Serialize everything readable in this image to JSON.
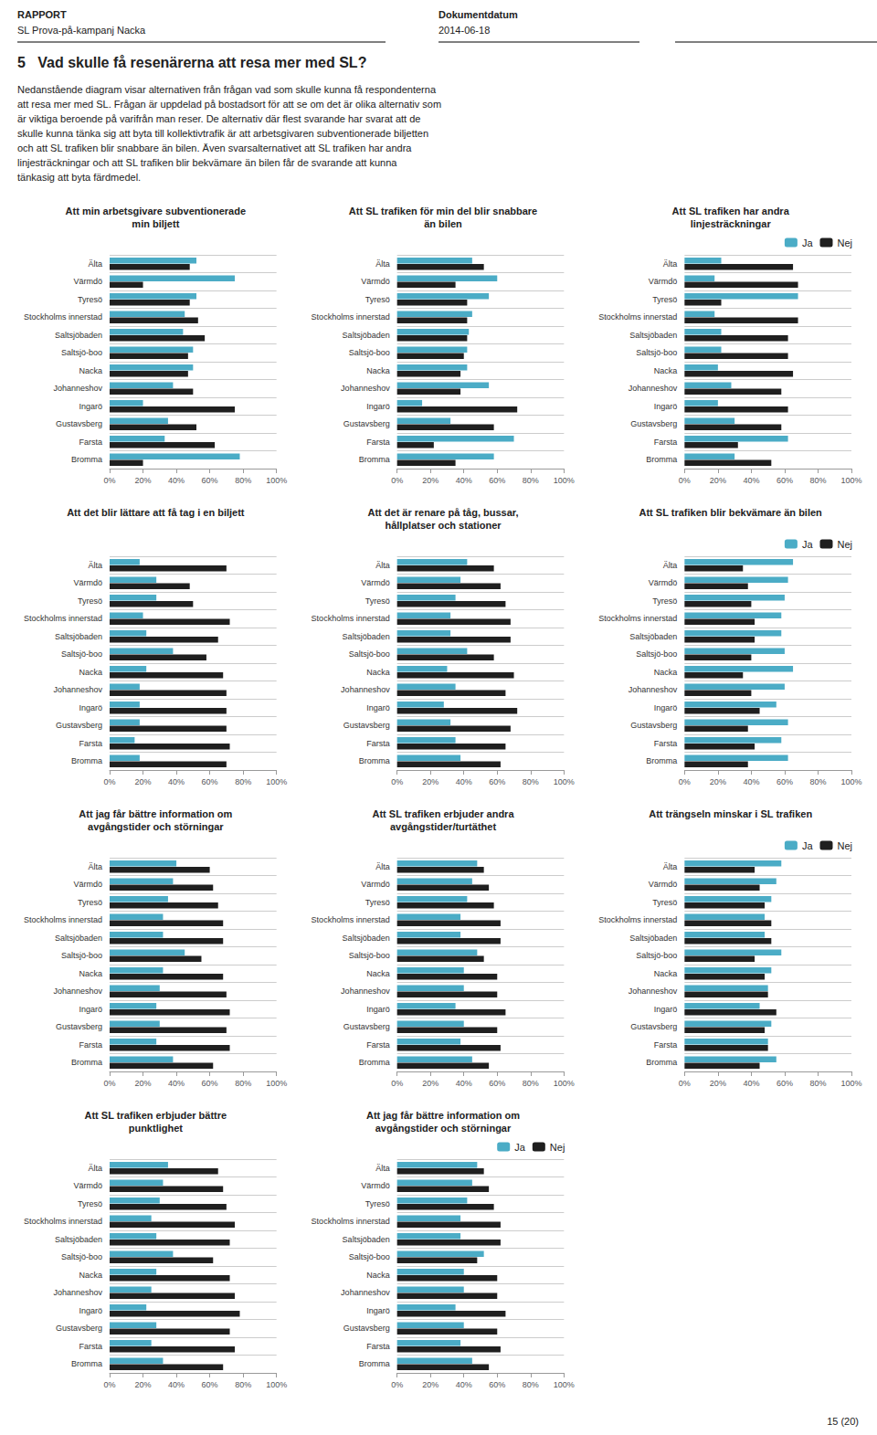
{
  "title": "5   Vad skulle få resenärerna att resa mer med SL?",
  "annotations": [
    "RAPPORT",
    "SL Prova-på-kampanj Nacka",
    "Dokumentdatum",
    "2014-06-18",
    "Nedanstående diagram visar alternativen från frågan vad som skulle kunna få respondenterna",
    "att resa mer med SL. Frågan är uppdelad på bostadsort för att se om det är olika alternativ som",
    "är viktiga beroende på varifrån man reser. De alternativ där flest svarande har svarat att de",
    "skulle kunna tänka sig att byta till kollektivtrafik är att arbetsgivaren subventionerade biljetten",
    "och att SL trafiken blir snabbare än bilen. Även svarsalternativet att SL trafiken har andra",
    "linjesträckningar och att SL trafiken blir bekvämare än bilen får de svarande att kunna",
    "tänkasig att byta färdmedel.",
    "15 (20)"
  ],
  "chart_data": [
    {
      "type": "bar",
      "orientation": "horizontal",
      "grid": true,
      "title": "Att min arbetsgivare subventionerade\nmin biljett",
      "categories": [
        "Älta",
        "Värmdö",
        "Tyresö",
        "Stockholms innerstad",
        "Saltsjöbaden",
        "Saltsjö-boo",
        "Nacka",
        "Johanneshov",
        "Ingarö",
        "Gustavsberg",
        "Farsta",
        "Bromma"
      ],
      "series": [
        {
          "name": "Ja",
          "color": "#4BACC6",
          "values": [
            52,
            75,
            52,
            45,
            44,
            50,
            50,
            38,
            20,
            35,
            33,
            78
          ]
        },
        {
          "name": "Nej",
          "color": "#1F1F1F",
          "values": [
            48,
            20,
            48,
            53,
            57,
            47,
            47,
            50,
            75,
            52,
            63,
            20
          ]
        }
      ],
      "xlim": [
        0,
        100
      ],
      "xticks": [
        {
          "value": 0,
          "label": "0%"
        },
        {
          "value": 20,
          "label": "20%"
        },
        {
          "value": 40,
          "label": "40%"
        },
        {
          "value": 60,
          "label": "60%"
        },
        {
          "value": 80,
          "label": "80%"
        },
        {
          "value": 100,
          "label": "100%"
        }
      ]
    },
    {
      "type": "bar",
      "orientation": "horizontal",
      "grid": true,
      "title": "Att SL trafiken för min del blir snabbare\nän bilen",
      "categories": [
        "Älta",
        "Värmdö",
        "Tyresö",
        "Stockholms innerstad",
        "Saltsjöbaden",
        "Saltsjö-boo",
        "Nacka",
        "Johanneshov",
        "Ingarö",
        "Gustavsberg",
        "Farsta",
        "Bromma"
      ],
      "series": [
        {
          "name": "Ja",
          "color": "#4BACC6",
          "values": [
            45,
            60,
            55,
            45,
            43,
            42,
            42,
            55,
            15,
            32,
            70,
            58
          ]
        },
        {
          "name": "Nej",
          "color": "#1F1F1F",
          "values": [
            52,
            35,
            42,
            42,
            42,
            40,
            38,
            38,
            72,
            58,
            22,
            35
          ]
        }
      ],
      "xlim": [
        0,
        100
      ],
      "xticks": [
        {
          "value": 0,
          "label": "0%"
        },
        {
          "value": 20,
          "label": "20%"
        },
        {
          "value": 40,
          "label": "40%"
        },
        {
          "value": 60,
          "label": "60%"
        },
        {
          "value": 80,
          "label": "80%"
        },
        {
          "value": 100,
          "label": "100%"
        }
      ]
    },
    {
      "type": "bar",
      "orientation": "horizontal",
      "grid": true,
      "legend": "right",
      "title": "Att SL trafiken har andra\nlinjesträckningar",
      "categories": [
        "Älta",
        "Värmdö",
        "Tyresö",
        "Stockholms innerstad",
        "Saltsjöbaden",
        "Saltsjö-boo",
        "Nacka",
        "Johanneshov",
        "Ingarö",
        "Gustavsberg",
        "Farsta",
        "Bromma"
      ],
      "series": [
        {
          "name": "Ja",
          "color": "#4BACC6",
          "values": [
            22,
            18,
            68,
            18,
            22,
            22,
            20,
            28,
            20,
            30,
            62,
            30
          ]
        },
        {
          "name": "Nej",
          "color": "#1F1F1F",
          "values": [
            65,
            68,
            22,
            68,
            62,
            62,
            65,
            58,
            62,
            58,
            32,
            52
          ]
        }
      ],
      "xlim": [
        0,
        100
      ],
      "xticks": [
        {
          "value": 0,
          "label": "0%"
        },
        {
          "value": 20,
          "label": "20%"
        },
        {
          "value": 40,
          "label": "40%"
        },
        {
          "value": 60,
          "label": "60%"
        },
        {
          "value": 80,
          "label": "80%"
        },
        {
          "value": 100,
          "label": "100%"
        }
      ]
    },
    {
      "type": "bar",
      "orientation": "horizontal",
      "grid": true,
      "title": "Att det blir lättare att få tag i en biljett",
      "categories": [
        "Älta",
        "Värmdö",
        "Tyresö",
        "Stockholms innerstad",
        "Saltsjöbaden",
        "Saltsjö-boo",
        "Nacka",
        "Johanneshov",
        "Ingarö",
        "Gustavsberg",
        "Farsta",
        "Bromma"
      ],
      "series": [
        {
          "name": "Ja",
          "color": "#4BACC6",
          "values": [
            18,
            28,
            28,
            20,
            22,
            38,
            22,
            18,
            18,
            18,
            15,
            18
          ]
        },
        {
          "name": "Nej",
          "color": "#1F1F1F",
          "values": [
            70,
            48,
            50,
            72,
            65,
            58,
            68,
            70,
            70,
            70,
            72,
            70
          ]
        }
      ],
      "xlim": [
        0,
        100
      ],
      "xticks": [
        {
          "value": 0,
          "label": "0%"
        },
        {
          "value": 20,
          "label": "20%"
        },
        {
          "value": 40,
          "label": "40%"
        },
        {
          "value": 60,
          "label": "60%"
        },
        {
          "value": 80,
          "label": "80%"
        },
        {
          "value": 100,
          "label": "100%"
        }
      ]
    },
    {
      "type": "bar",
      "orientation": "horizontal",
      "grid": true,
      "title": "Att det är renare på tåg, bussar,\nhållplatser och stationer",
      "categories": [
        "Älta",
        "Värmdö",
        "Tyresö",
        "Stockholms innerstad",
        "Saltsjöbaden",
        "Saltsjö-boo",
        "Nacka",
        "Johanneshov",
        "Ingarö",
        "Gustavsberg",
        "Farsta",
        "Bromma"
      ],
      "series": [
        {
          "name": "Ja",
          "color": "#4BACC6",
          "values": [
            42,
            38,
            35,
            32,
            32,
            42,
            30,
            35,
            28,
            32,
            35,
            38
          ]
        },
        {
          "name": "Nej",
          "color": "#1F1F1F",
          "values": [
            58,
            62,
            65,
            68,
            68,
            58,
            70,
            65,
            72,
            68,
            65,
            62
          ]
        }
      ],
      "xlim": [
        0,
        100
      ],
      "xticks": [
        {
          "value": 0,
          "label": "0%"
        },
        {
          "value": 20,
          "label": "20%"
        },
        {
          "value": 40,
          "label": "40%"
        },
        {
          "value": 60,
          "label": "60%"
        },
        {
          "value": 80,
          "label": "80%"
        },
        {
          "value": 100,
          "label": "100%"
        }
      ]
    },
    {
      "type": "bar",
      "orientation": "horizontal",
      "grid": true,
      "legend": "right",
      "title": "Att SL trafiken blir bekvämare än bilen",
      "categories": [
        "Älta",
        "Värmdö",
        "Tyresö",
        "Stockholms innerstad",
        "Saltsjöbaden",
        "Saltsjö-boo",
        "Nacka",
        "Johanneshov",
        "Ingarö",
        "Gustavsberg",
        "Farsta",
        "Bromma"
      ],
      "series": [
        {
          "name": "Ja",
          "color": "#4BACC6",
          "values": [
            65,
            62,
            60,
            58,
            58,
            60,
            65,
            60,
            55,
            62,
            58,
            62
          ]
        },
        {
          "name": "Nej",
          "color": "#1F1F1F",
          "values": [
            35,
            38,
            40,
            42,
            42,
            40,
            35,
            40,
            45,
            38,
            42,
            38
          ]
        }
      ],
      "xlim": [
        0,
        100
      ],
      "xticks": [
        {
          "value": 0,
          "label": "0%"
        },
        {
          "value": 20,
          "label": "20%"
        },
        {
          "value": 40,
          "label": "40%"
        },
        {
          "value": 60,
          "label": "60%"
        },
        {
          "value": 80,
          "label": "80%"
        },
        {
          "value": 100,
          "label": "100%"
        }
      ]
    },
    {
      "type": "bar",
      "orientation": "horizontal",
      "grid": true,
      "title": "Att jag får bättre information om\navgångstider och störningar",
      "categories": [
        "Älta",
        "Värmdö",
        "Tyresö",
        "Stockholms innerstad",
        "Saltsjöbaden",
        "Saltsjö-boo",
        "Nacka",
        "Johanneshov",
        "Ingarö",
        "Gustavsberg",
        "Farsta",
        "Bromma"
      ],
      "series": [
        {
          "name": "Ja",
          "color": "#4BACC6",
          "values": [
            40,
            38,
            35,
            32,
            32,
            45,
            32,
            30,
            28,
            30,
            28,
            38
          ]
        },
        {
          "name": "Nej",
          "color": "#1F1F1F",
          "values": [
            60,
            62,
            65,
            68,
            68,
            55,
            68,
            70,
            72,
            70,
            72,
            62
          ]
        }
      ],
      "xlim": [
        0,
        100
      ],
      "xticks": [
        {
          "value": 0,
          "label": "0%"
        },
        {
          "value": 20,
          "label": "20%"
        },
        {
          "value": 40,
          "label": "40%"
        },
        {
          "value": 60,
          "label": "60%"
        },
        {
          "value": 80,
          "label": "80%"
        },
        {
          "value": 100,
          "label": "100%"
        }
      ]
    },
    {
      "type": "bar",
      "orientation": "horizontal",
      "grid": true,
      "title": "Att SL trafiken erbjuder andra\navgångstider/turtäthet",
      "categories": [
        "Älta",
        "Värmdö",
        "Tyresö",
        "Stockholms innerstad",
        "Saltsjöbaden",
        "Saltsjö-boo",
        "Nacka",
        "Johanneshov",
        "Ingarö",
        "Gustavsberg",
        "Farsta",
        "Bromma"
      ],
      "series": [
        {
          "name": "Ja",
          "color": "#4BACC6",
          "values": [
            48,
            45,
            42,
            38,
            38,
            48,
            40,
            40,
            35,
            40,
            38,
            45
          ]
        },
        {
          "name": "Nej",
          "color": "#1F1F1F",
          "values": [
            52,
            55,
            58,
            62,
            62,
            52,
            60,
            60,
            65,
            60,
            62,
            55
          ]
        }
      ],
      "xlim": [
        0,
        100
      ],
      "xticks": [
        {
          "value": 0,
          "label": "0%"
        },
        {
          "value": 20,
          "label": "20%"
        },
        {
          "value": 40,
          "label": "40%"
        },
        {
          "value": 60,
          "label": "60%"
        },
        {
          "value": 80,
          "label": "80%"
        },
        {
          "value": 100,
          "label": "100%"
        }
      ]
    },
    {
      "type": "bar",
      "orientation": "horizontal",
      "grid": true,
      "legend": "right",
      "title": "Att trängseln minskar i SL trafiken",
      "categories": [
        "Älta",
        "Värmdö",
        "Tyresö",
        "Stockholms innerstad",
        "Saltsjöbaden",
        "Saltsjö-boo",
        "Nacka",
        "Johanneshov",
        "Ingarö",
        "Gustavsberg",
        "Farsta",
        "Bromma"
      ],
      "series": [
        {
          "name": "Ja",
          "color": "#4BACC6",
          "values": [
            58,
            55,
            52,
            48,
            48,
            58,
            52,
            50,
            45,
            52,
            50,
            55
          ]
        },
        {
          "name": "Nej",
          "color": "#1F1F1F",
          "values": [
            42,
            45,
            48,
            52,
            52,
            42,
            48,
            50,
            55,
            48,
            50,
            45
          ]
        }
      ],
      "xlim": [
        0,
        100
      ],
      "xticks": [
        {
          "value": 0,
          "label": "0%"
        },
        {
          "value": 20,
          "label": "20%"
        },
        {
          "value": 40,
          "label": "40%"
        },
        {
          "value": 60,
          "label": "60%"
        },
        {
          "value": 80,
          "label": "80%"
        },
        {
          "value": 100,
          "label": "100%"
        }
      ]
    },
    {
      "type": "bar",
      "orientation": "horizontal",
      "grid": true,
      "title": "Att SL trafiken erbjuder bättre\npunktlighet",
      "categories": [
        "Älta",
        "Värmdö",
        "Tyresö",
        "Stockholms innerstad",
        "Saltsjöbaden",
        "Saltsjö-boo",
        "Nacka",
        "Johanneshov",
        "Ingarö",
        "Gustavsberg",
        "Farsta",
        "Bromma"
      ],
      "series": [
        {
          "name": "Ja",
          "color": "#4BACC6",
          "values": [
            35,
            32,
            30,
            25,
            28,
            38,
            28,
            25,
            22,
            28,
            25,
            32
          ]
        },
        {
          "name": "Nej",
          "color": "#1F1F1F",
          "values": [
            65,
            68,
            70,
            75,
            72,
            62,
            72,
            75,
            78,
            72,
            75,
            68
          ]
        }
      ],
      "xlim": [
        0,
        100
      ],
      "xticks": [
        {
          "value": 0,
          "label": "0%"
        },
        {
          "value": 20,
          "label": "20%"
        },
        {
          "value": 40,
          "label": "40%"
        },
        {
          "value": 60,
          "label": "60%"
        },
        {
          "value": 80,
          "label": "80%"
        },
        {
          "value": 100,
          "label": "100%"
        }
      ]
    },
    {
      "type": "bar",
      "orientation": "horizontal",
      "grid": true,
      "legend": "right",
      "title": "Att jag får bättre information om\navgångstider och störningar",
      "categories": [
        "Älta",
        "Värmdö",
        "Tyresö",
        "Stockholms innerstad",
        "Saltsjöbaden",
        "Saltsjö-boo",
        "Nacka",
        "Johanneshov",
        "Ingarö",
        "Gustavsberg",
        "Farsta",
        "Bromma"
      ],
      "series": [
        {
          "name": "Ja",
          "color": "#4BACC6",
          "values": [
            48,
            45,
            42,
            38,
            38,
            52,
            40,
            40,
            35,
            40,
            38,
            45
          ]
        },
        {
          "name": "Nej",
          "color": "#1F1F1F",
          "values": [
            52,
            55,
            58,
            62,
            62,
            48,
            60,
            60,
            65,
            60,
            62,
            55
          ]
        }
      ],
      "xlim": [
        0,
        100
      ],
      "xticks": [
        {
          "value": 0,
          "label": "0%"
        },
        {
          "value": 20,
          "label": "20%"
        },
        {
          "value": 40,
          "label": "40%"
        },
        {
          "value": 60,
          "label": "60%"
        },
        {
          "value": 80,
          "label": "80%"
        },
        {
          "value": 100,
          "label": "100%"
        }
      ]
    }
  ]
}
